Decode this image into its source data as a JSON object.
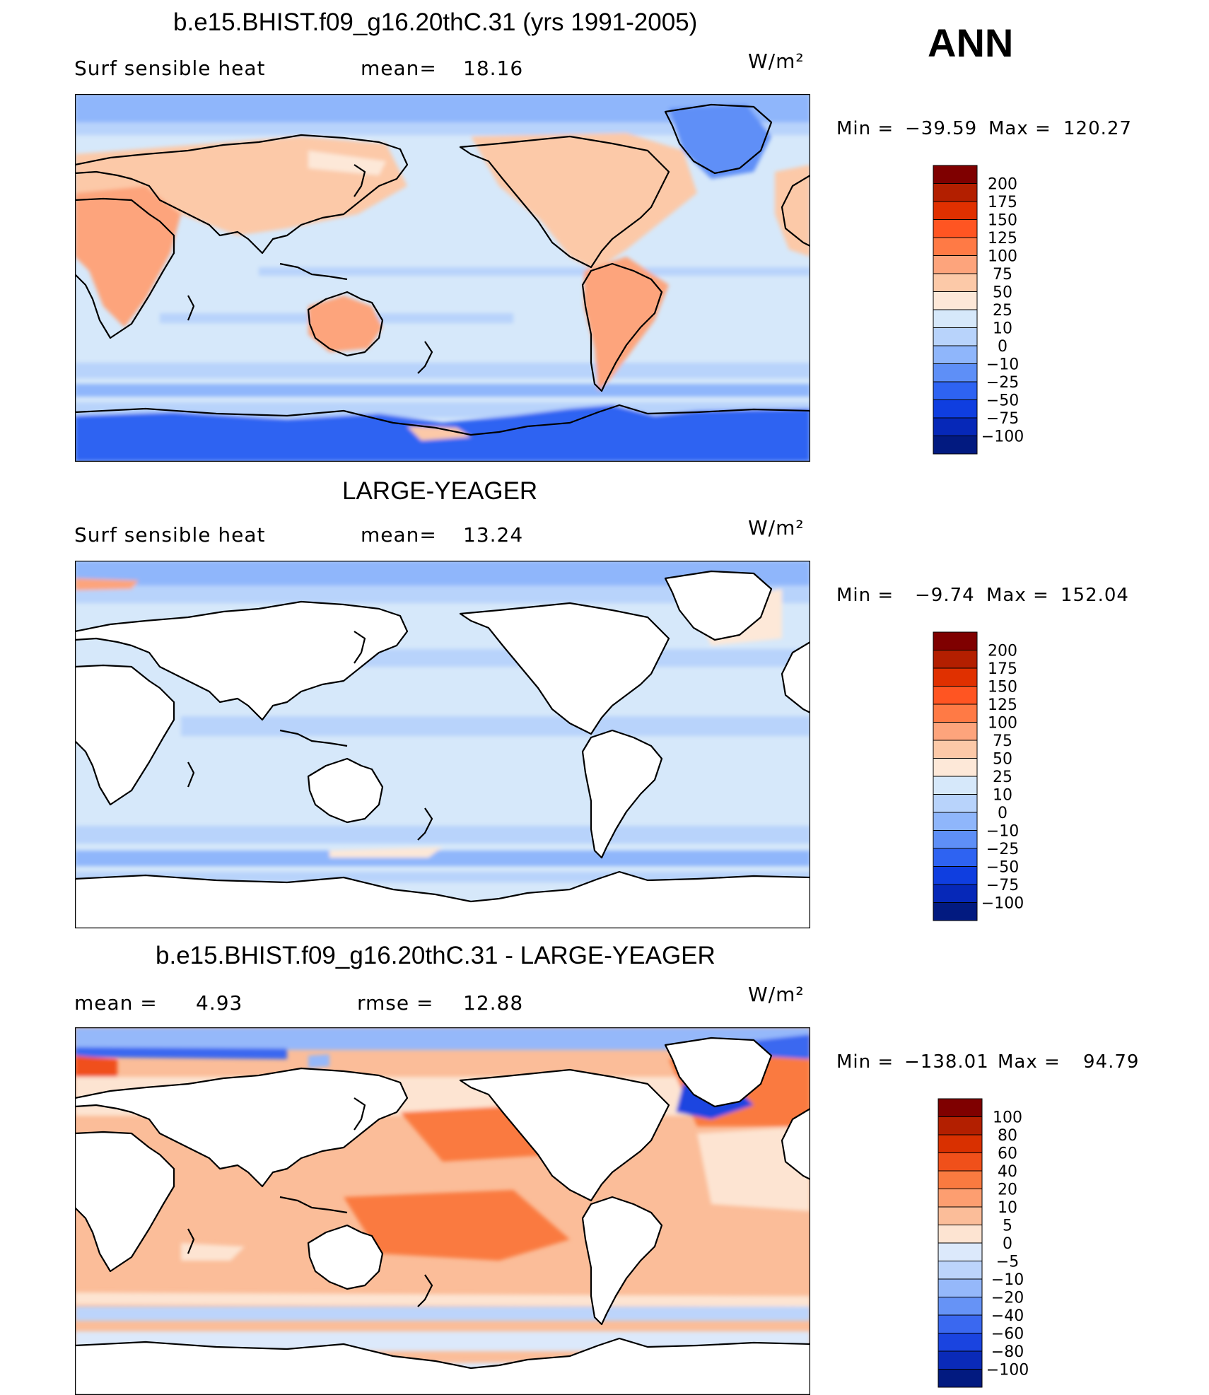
{
  "season": "ANN",
  "chart_data": [
    {
      "type": "heatmap",
      "title": "b.e15.BHIST.f09_g16.20thC.31 (yrs 1991-2005)",
      "left_label": "Surf sensible heat",
      "center_label": "mean=",
      "center_value": "18.16",
      "units": "W/m²",
      "min_label": "Min =",
      "min_value": "−39.59",
      "max_label": "Max =",
      "max_value": "120.27",
      "colorbar": {
        "levels": [
          "200",
          "175",
          "150",
          "125",
          "100",
          "75",
          "50",
          "25",
          "10",
          "0",
          "−10",
          "−25",
          "−50",
          "−75",
          "−100"
        ],
        "colors": [
          "#7f0000",
          "#b31f00",
          "#e03000",
          "#ff5522",
          "#ff7a45",
          "#fda47c",
          "#fcc9a8",
          "#fde8d8",
          "#d6e8fa",
          "#b8d3fb",
          "#8fb6fb",
          "#5e8ff7",
          "#2e63f2",
          "#0f3ee0",
          "#0628b8",
          "#021a80"
        ]
      }
    },
    {
      "type": "heatmap",
      "title": "LARGE-YEAGER",
      "left_label": "Surf sensible heat",
      "center_label": "mean=",
      "center_value": "13.24",
      "units": "W/m²",
      "min_label": "Min =",
      "min_value": "−9.74",
      "max_label": "Max =",
      "max_value": "152.04",
      "colorbar": {
        "levels": [
          "200",
          "175",
          "150",
          "125",
          "100",
          "75",
          "50",
          "25",
          "10",
          "0",
          "−10",
          "−25",
          "−50",
          "−75",
          "−100"
        ],
        "colors": [
          "#7f0000",
          "#b31f00",
          "#e03000",
          "#ff5522",
          "#ff7a45",
          "#fda47c",
          "#fcc9a8",
          "#fde8d8",
          "#d6e8fa",
          "#b8d3fb",
          "#8fb6fb",
          "#5e8ff7",
          "#2e63f2",
          "#0f3ee0",
          "#0628b8",
          "#021a80"
        ]
      }
    },
    {
      "type": "heatmap",
      "title": "b.e15.BHIST.f09_g16.20thC.31 - LARGE-YEAGER",
      "left_label": "mean =",
      "left_value": "4.93",
      "center_label": "rmse =",
      "center_value": "12.88",
      "units": "W/m²",
      "min_label": "Min =",
      "min_value": "−138.01",
      "max_label": "Max =",
      "max_value": "94.79",
      "colorbar": {
        "levels": [
          "100",
          "80",
          "60",
          "40",
          "20",
          "10",
          "5",
          "0",
          "−5",
          "−10",
          "−20",
          "−40",
          "−60",
          "−80",
          "−100"
        ],
        "colors": [
          "#7f0000",
          "#b31f00",
          "#d93000",
          "#f0501a",
          "#fa7a40",
          "#fd9e70",
          "#fbbd99",
          "#fde4d2",
          "#dce9fb",
          "#bcd4fb",
          "#95b8fa",
          "#6693f6",
          "#3a68f0",
          "#1a44e0",
          "#0a2ab8",
          "#021a80"
        ]
      }
    }
  ]
}
